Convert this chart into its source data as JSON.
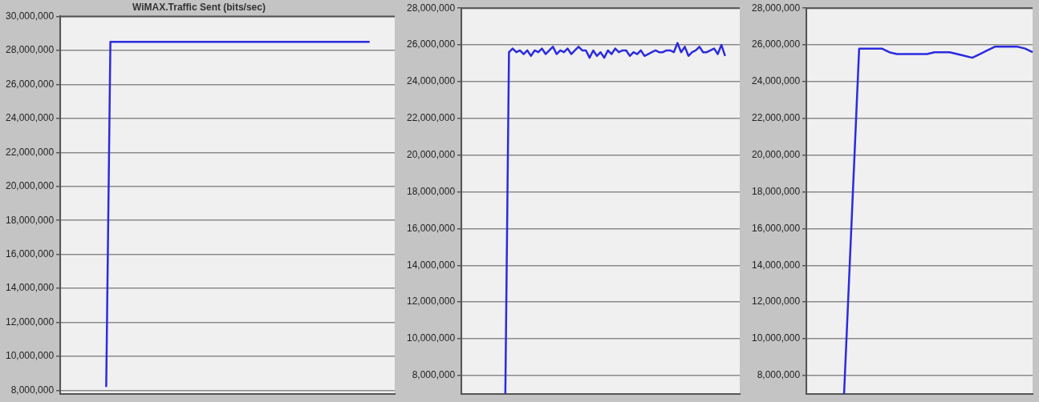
{
  "chart_data": [
    {
      "type": "line",
      "title": "WiMAX.Traffic Sent (bits/sec)",
      "tick_labels": "y",
      "grid": "y",
      "marker": "none",
      "line_style": "solid",
      "categories": [
        null,
        null,
        null,
        null,
        null,
        null,
        null,
        null,
        null,
        null,
        null,
        null,
        null,
        null,
        null,
        null,
        null,
        null,
        null,
        null,
        null,
        null,
        null,
        null,
        null,
        null,
        null,
        null,
        null,
        null,
        null,
        null,
        null,
        null,
        null,
        null,
        null,
        null,
        null,
        null,
        null,
        null,
        null,
        null,
        null,
        null,
        null,
        null,
        null,
        null,
        null,
        null,
        null,
        null,
        null,
        null,
        null,
        null,
        null,
        null,
        null,
        null,
        null,
        null,
        null,
        null,
        null,
        null,
        null,
        null,
        null,
        null,
        null,
        null,
        null,
        null,
        null,
        null,
        null,
        null,
        null
      ],
      "series": [
        {
          "color": "#2b2be0",
          "values": [
            null,
            null,
            null,
            null,
            null,
            null,
            null,
            null,
            null,
            null,
            null,
            8200000,
            28500000,
            28500000,
            28500000,
            28500000,
            28500000,
            28500000,
            28500000,
            28500000,
            28500000,
            28500000,
            28500000,
            28500000,
            28500000,
            28500000,
            28500000,
            28500000,
            28500000,
            28500000,
            28500000,
            28500000,
            28500000,
            28500000,
            28500000,
            28500000,
            28500000,
            28500000,
            28500000,
            28500000,
            28500000,
            28500000,
            28500000,
            28500000,
            28500000,
            28500000,
            28500000,
            28500000,
            28500000,
            28500000,
            28500000,
            28500000,
            28500000,
            28500000,
            28500000,
            28500000,
            28500000,
            28500000,
            28500000,
            28500000,
            28500000,
            28500000,
            28500000,
            28500000,
            28500000,
            28500000,
            28500000,
            28500000,
            28500000,
            28500000,
            28500000,
            28500000,
            28500000,
            28500000,
            28500000,
            null,
            null,
            null,
            null,
            null,
            null
          ]
        }
      ],
      "ylim": [
        7800000,
        30000000
      ],
      "yticks": [
        {
          "value": 8000000,
          "label": "8,000,000"
        },
        {
          "value": 10000000,
          "label": "10,000,000"
        },
        {
          "value": 12000000,
          "label": "12,000,000"
        },
        {
          "value": 14000000,
          "label": "14,000,000"
        },
        {
          "value": 16000000,
          "label": "16,000,000"
        },
        {
          "value": 18000000,
          "label": "18,000,000"
        },
        {
          "value": 20000000,
          "label": "20,000,000"
        },
        {
          "value": 22000000,
          "label": "22,000,000"
        },
        {
          "value": 24000000,
          "label": "24,000,000"
        },
        {
          "value": 26000000,
          "label": "26,000,000"
        },
        {
          "value": 28000000,
          "label": "28,000,000"
        },
        {
          "value": 30000000,
          "label": "30,000,000"
        }
      ]
    },
    {
      "type": "line",
      "tick_labels": "y",
      "grid": "y",
      "marker": "none",
      "line_style": "solid",
      "categories": [
        null,
        null,
        null,
        null,
        null,
        null,
        null,
        null,
        null,
        null,
        null,
        null,
        null,
        null,
        null,
        null,
        null,
        null,
        null,
        null,
        null,
        null,
        null,
        null,
        null,
        null,
        null,
        null,
        null,
        null,
        null,
        null,
        null,
        null,
        null,
        null,
        null,
        null,
        null,
        null,
        null,
        null,
        null,
        null,
        null,
        null,
        null,
        null,
        null,
        null,
        null,
        null,
        null,
        null,
        null,
        null,
        null,
        null,
        null,
        null,
        null,
        null,
        null,
        null,
        null,
        null,
        null,
        null,
        null,
        null,
        null,
        null,
        null,
        null,
        null,
        null,
        null
      ],
      "series": [
        {
          "color": "#2b2be0",
          "values": [
            null,
            null,
            null,
            null,
            null,
            null,
            null,
            null,
            null,
            null,
            null,
            null,
            7000000,
            25600000,
            25800000,
            25600000,
            25700000,
            25500000,
            25700000,
            25400000,
            25700000,
            25600000,
            25800000,
            25500000,
            25700000,
            25900000,
            25500000,
            25700000,
            25600000,
            25800000,
            25500000,
            25700000,
            25900000,
            25700000,
            25700000,
            25300000,
            25700000,
            25400000,
            25600000,
            25300000,
            25700000,
            25500000,
            25800000,
            25600000,
            25700000,
            25700000,
            25400000,
            25600000,
            25500000,
            25700000,
            25400000,
            25500000,
            25600000,
            25700000,
            25600000,
            25600000,
            25700000,
            25700000,
            25600000,
            26100000,
            25600000,
            25900000,
            25400000,
            25600000,
            25700000,
            25900000,
            25600000,
            25600000,
            25700000,
            25800000,
            25500000,
            26000000,
            25400000,
            null,
            null,
            null,
            null
          ]
        }
      ],
      "ylim": [
        7000000,
        28000000
      ],
      "yticks": [
        {
          "value": 8000000,
          "label": "8,000,000"
        },
        {
          "value": 10000000,
          "label": "10,000,000"
        },
        {
          "value": 12000000,
          "label": "12,000,000"
        },
        {
          "value": 14000000,
          "label": "14,000,000"
        },
        {
          "value": 16000000,
          "label": "16,000,000"
        },
        {
          "value": 18000000,
          "label": "18,000,000"
        },
        {
          "value": 20000000,
          "label": "20,000,000"
        },
        {
          "value": 22000000,
          "label": "22,000,000"
        },
        {
          "value": 24000000,
          "label": "24,000,000"
        },
        {
          "value": 26000000,
          "label": "26,000,000"
        },
        {
          "value": 28000000,
          "label": "28,000,000"
        }
      ]
    },
    {
      "type": "line",
      "tick_labels": "y",
      "grid": "y",
      "marker": "none",
      "line_style": "solid",
      "categories": [
        null,
        null,
        null,
        null,
        null,
        null,
        null,
        null,
        null,
        null,
        null,
        null,
        null,
        null,
        null,
        null,
        null,
        null,
        null,
        null,
        null,
        null,
        null,
        null,
        null,
        null,
        null,
        null,
        null,
        null,
        null
      ],
      "series": [
        {
          "color": "#2b2be0",
          "values": [
            null,
            null,
            null,
            null,
            null,
            7000000,
            16400000,
            25800000,
            25800000,
            25800000,
            25800000,
            25600000,
            25500000,
            25500000,
            25500000,
            25500000,
            25500000,
            25600000,
            25600000,
            25600000,
            25500000,
            25400000,
            25300000,
            25500000,
            25700000,
            25900000,
            25900000,
            25900000,
            25900000,
            25800000,
            25600000
          ]
        }
      ],
      "ylim": [
        7000000,
        28000000
      ],
      "yticks": [
        {
          "value": 8000000,
          "label": "8,000,000"
        },
        {
          "value": 10000000,
          "label": "10,000,000"
        },
        {
          "value": 12000000,
          "label": "12,000,000"
        },
        {
          "value": 14000000,
          "label": "14,000,000"
        },
        {
          "value": 16000000,
          "label": "16,000,000"
        },
        {
          "value": 18000000,
          "label": "18,000,000"
        },
        {
          "value": 20000000,
          "label": "20,000,000"
        },
        {
          "value": 22000000,
          "label": "22,000,000"
        },
        {
          "value": 24000000,
          "label": "24,000,000"
        },
        {
          "value": 26000000,
          "label": "26,000,000"
        },
        {
          "value": 28000000,
          "label": "28,000,000"
        }
      ]
    }
  ]
}
